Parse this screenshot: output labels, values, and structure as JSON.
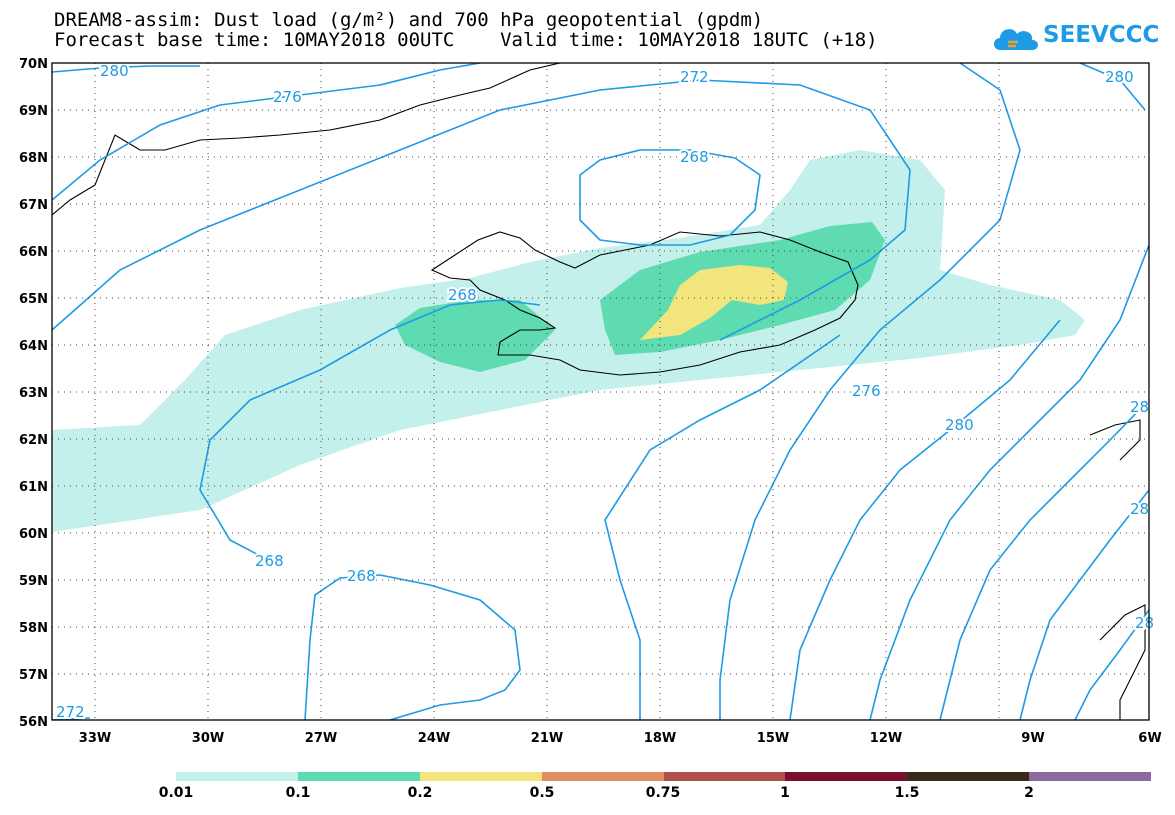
{
  "title": {
    "line1": "DREAM8-assim: Dust load (g/m²) and 700 hPa geopotential (gpdm)",
    "line2": "Forecast base time: 10MAY2018 00UTC    Valid time: 10MAY2018 18UTC (+18)"
  },
  "logo": {
    "text": "SEEVCCC",
    "icon": "cloud-icon"
  },
  "map": {
    "lat_labels": [
      "70N",
      "69N",
      "68N",
      "67N",
      "66N",
      "65N",
      "64N",
      "63N",
      "62N",
      "61N",
      "60N",
      "59N",
      "58N",
      "57N",
      "56N"
    ],
    "lon_labels": [
      "33W",
      "30W",
      "27W",
      "24W",
      "21W",
      "18W",
      "15W",
      "12W",
      "9W",
      "6W"
    ],
    "contour_labels": [
      "280",
      "276",
      "272",
      "268",
      "268",
      "268",
      "268",
      "276",
      "280",
      "272",
      "280",
      "28",
      "28",
      "28"
    ],
    "colors": {
      "contour": "#1e9be4",
      "coast": "#000000",
      "grid": "#444444"
    }
  },
  "colorbar": {
    "ticks": [
      "0.01",
      "0.1",
      "0.2",
      "0.5",
      "0.75",
      "1",
      "1.5",
      "2"
    ],
    "colors": [
      "#c3f0ea",
      "#5edbb1",
      "#f3e57e",
      "#e08e66",
      "#b0504c",
      "#7a0e2e",
      "#3a2a1c",
      "#8c6a9e"
    ]
  }
}
